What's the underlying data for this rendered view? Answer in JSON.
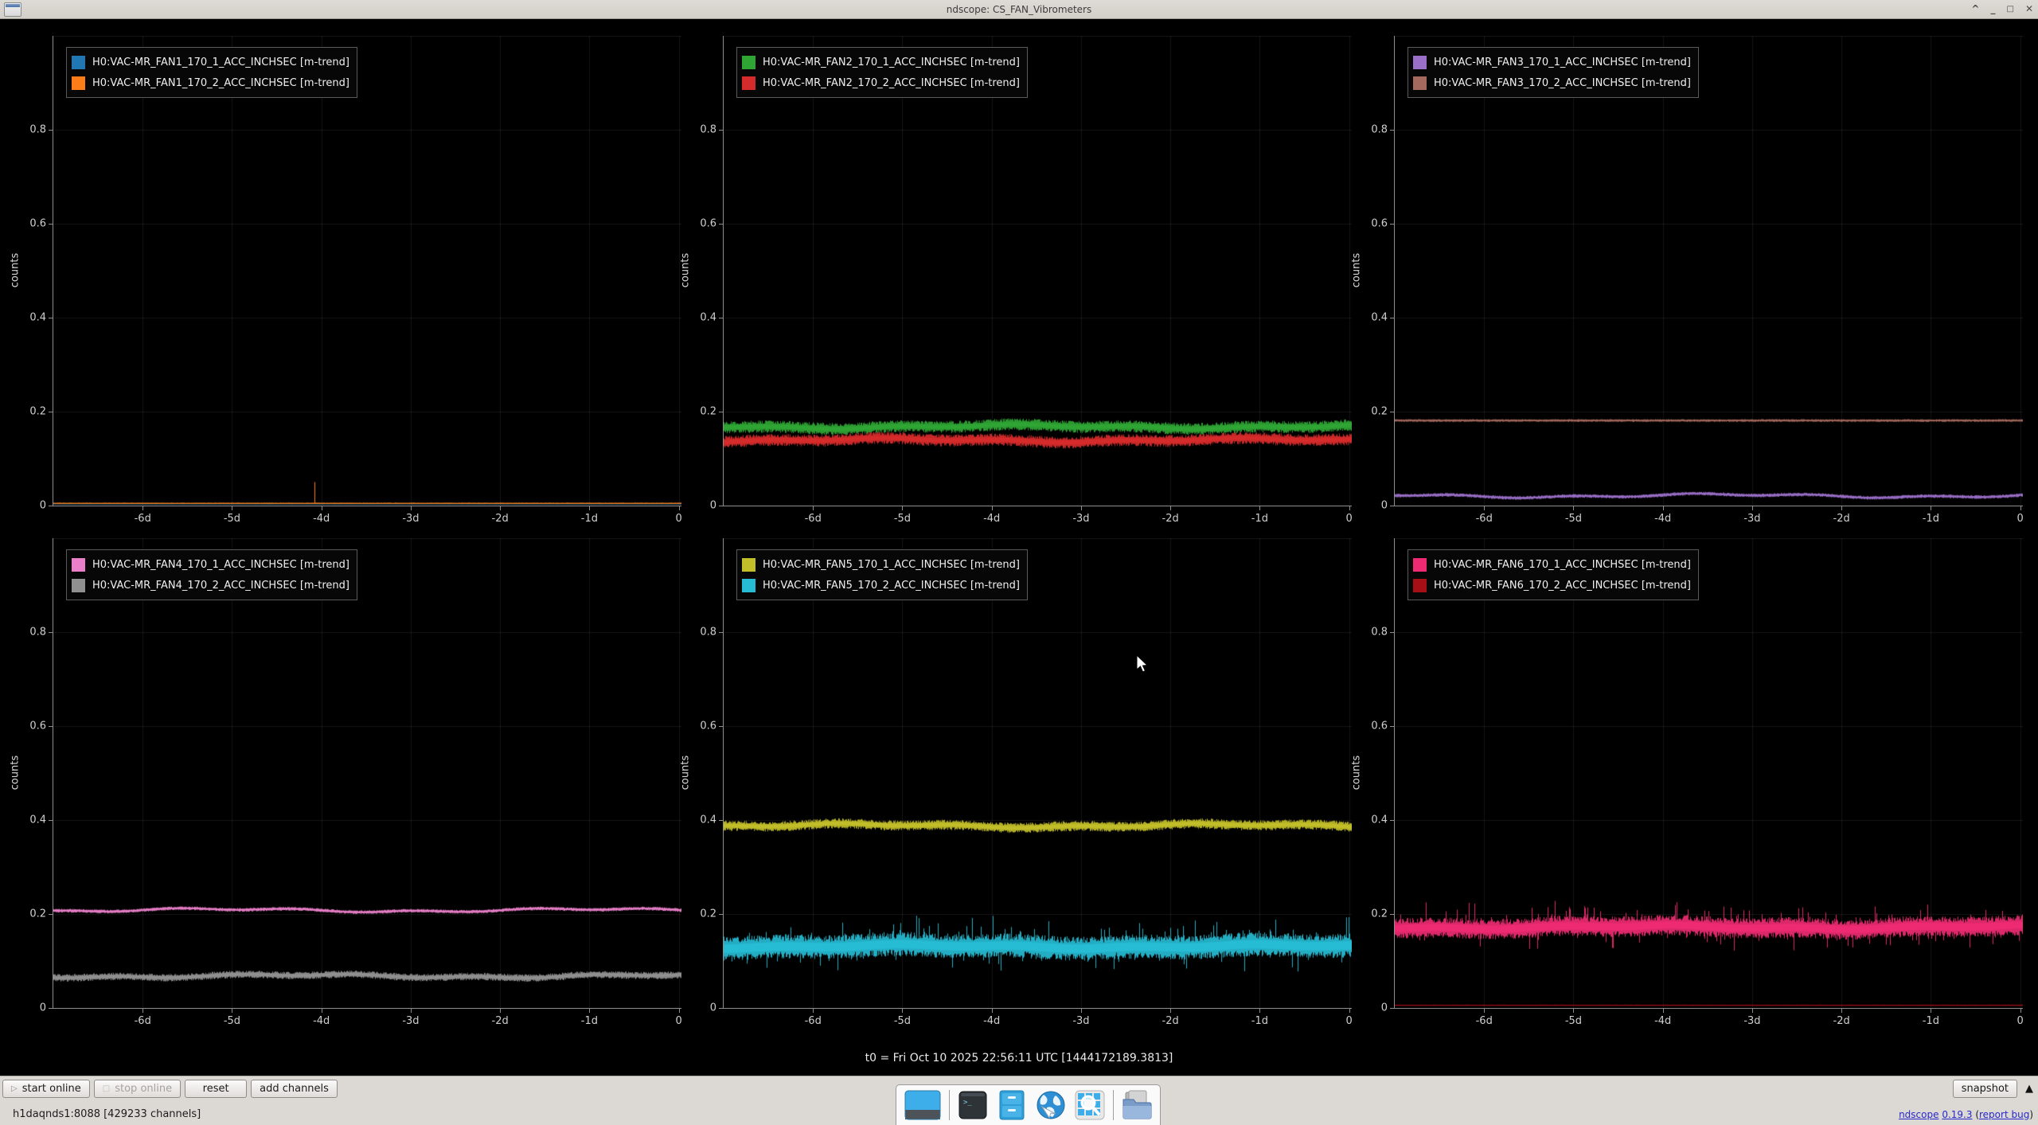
{
  "window": {
    "title": "ndscope: CS_FAN_Vibrometers",
    "controls": [
      "rollup",
      "minimize",
      "maximize",
      "close"
    ]
  },
  "t0_label": "t0 = Fri Oct 10 2025 22:56:11 UTC [1444172189.3813]",
  "toolbar": {
    "start_online": "start online",
    "stop_online": "stop online",
    "reset": "reset",
    "add_channels": "add channels",
    "snapshot": "snapshot"
  },
  "status": {
    "server_info": "h1daqnds1:8088  [429233 channels]",
    "app_name_link": "ndscope",
    "version_link": "0.19.3",
    "open_paren": "(",
    "bug_link": "report bug",
    "close_paren": ")"
  },
  "taskbar": {
    "icons": [
      "show-desktop",
      "terminal",
      "file-cabinet",
      "web-browser",
      "application-finder",
      "file-manager"
    ]
  },
  "chart_data": [
    {
      "type": "line",
      "title": "",
      "ylabel": "counts",
      "xlabel": "",
      "ylim": [
        0,
        1.0
      ],
      "xlim_days": [
        -7,
        0.03
      ],
      "grid": true,
      "legend_position": "top-left",
      "xtick_days": [
        -6,
        -5,
        -4,
        -3,
        -2,
        -1,
        0
      ],
      "xtick_labels": [
        "-6d",
        "-5d",
        "-4d",
        "-3d",
        "-2d",
        "-1d",
        "0"
      ],
      "ytick_values": [
        0,
        0.2,
        0.4,
        0.6,
        0.8
      ],
      "ytick_labels": [
        "0",
        "0.2",
        "0.4",
        "0.6",
        "0.8"
      ],
      "series": [
        {
          "name": "H0:VAC-MR_FAN1_170_1_ACC_INCHSEC [m-trend]",
          "color": "#2077b4",
          "mean": 0.004,
          "amp": 0.001,
          "spiky": false
        },
        {
          "name": "H0:VAC-MR_FAN1_170_2_ACC_INCHSEC [m-trend]",
          "color": "#fb7d17",
          "mean": 0.005,
          "amp": 0.0012,
          "spiky": false,
          "spikes": [
            {
              "t": -4.08,
              "v": 0.05
            }
          ]
        }
      ]
    },
    {
      "type": "line",
      "title": "",
      "ylabel": "counts",
      "xlabel": "",
      "ylim": [
        0,
        1.0
      ],
      "xlim_days": [
        -7,
        0.03
      ],
      "grid": true,
      "legend_position": "top-left",
      "xtick_days": [
        -6,
        -5,
        -4,
        -3,
        -2,
        -1,
        0
      ],
      "xtick_labels": [
        "-6d",
        "-5d",
        "-4d",
        "-3d",
        "-2d",
        "-1d",
        "0"
      ],
      "ytick_values": [
        0,
        0.2,
        0.4,
        0.6,
        0.8
      ],
      "ytick_labels": [
        "0",
        "0.2",
        "0.4",
        "0.6",
        "0.8"
      ],
      "series": [
        {
          "name": "H0:VAC-MR_FAN2_170_1_ACC_INCHSEC [m-trend]",
          "color": "#2fa534",
          "mean": 0.168,
          "amp": 0.013,
          "spiky": false
        },
        {
          "name": "H0:VAC-MR_FAN2_170_2_ACC_INCHSEC [m-trend]",
          "color": "#d62b2b",
          "mean": 0.139,
          "amp": 0.013,
          "spiky": false
        }
      ]
    },
    {
      "type": "line",
      "title": "",
      "ylabel": "counts",
      "xlabel": "",
      "ylim": [
        0,
        1.0
      ],
      "xlim_days": [
        -7,
        0.03
      ],
      "grid": true,
      "legend_position": "top-left",
      "xtick_days": [
        -6,
        -5,
        -4,
        -3,
        -2,
        -1,
        0
      ],
      "xtick_labels": [
        "-6d",
        "-5d",
        "-4d",
        "-3d",
        "-2d",
        "-1d",
        "0"
      ],
      "ytick_values": [
        0,
        0.2,
        0.4,
        0.6,
        0.8
      ],
      "ytick_labels": [
        "0",
        "0.2",
        "0.4",
        "0.6",
        "0.8"
      ],
      "series": [
        {
          "name": "H0:VAC-MR_FAN3_170_1_ACC_INCHSEC [m-trend]",
          "color": "#9a6fc8",
          "mean": 0.021,
          "amp": 0.004,
          "spiky": false
        },
        {
          "name": "H0:VAC-MR_FAN3_170_2_ACC_INCHSEC [m-trend]",
          "color": "#a5695e",
          "mean": 0.181,
          "amp": 0.003,
          "spiky": false
        }
      ]
    },
    {
      "type": "line",
      "title": "",
      "ylabel": "counts",
      "xlabel": "",
      "ylim": [
        0,
        1.0
      ],
      "xlim_days": [
        -7,
        0.03
      ],
      "grid": true,
      "legend_position": "top-left",
      "xtick_days": [
        -6,
        -5,
        -4,
        -3,
        -2,
        -1,
        0
      ],
      "xtick_labels": [
        "-6d",
        "-5d",
        "-4d",
        "-3d",
        "-2d",
        "-1d",
        "0"
      ],
      "ytick_values": [
        0,
        0.2,
        0.4,
        0.6,
        0.8
      ],
      "ytick_labels": [
        "0",
        "0.2",
        "0.4",
        "0.6",
        "0.8"
      ],
      "series": [
        {
          "name": "H0:VAC-MR_FAN4_170_1_ACC_INCHSEC [m-trend]",
          "color": "#e87fc8",
          "mean": 0.208,
          "amp": 0.004,
          "spiky": false
        },
        {
          "name": "H0:VAC-MR_FAN4_170_2_ACC_INCHSEC [m-trend]",
          "color": "#909090",
          "mean": 0.068,
          "amp": 0.008,
          "spiky": false
        }
      ]
    },
    {
      "type": "line",
      "title": "",
      "ylabel": "counts",
      "xlabel": "",
      "ylim": [
        0,
        1.0
      ],
      "xlim_days": [
        -7,
        0.03
      ],
      "grid": true,
      "legend_position": "top-left",
      "xtick_days": [
        -6,
        -5,
        -4,
        -3,
        -2,
        -1,
        0
      ],
      "xtick_labels": [
        "-6d",
        "-5d",
        "-4d",
        "-3d",
        "-2d",
        "-1d",
        "0"
      ],
      "ytick_values": [
        0,
        0.2,
        0.4,
        0.6,
        0.8
      ],
      "ytick_labels": [
        "0",
        "0.2",
        "0.4",
        "0.6",
        "0.8"
      ],
      "series": [
        {
          "name": "H0:VAC-MR_FAN5_170_1_ACC_INCHSEC [m-trend]",
          "color": "#c2be29",
          "mean": 0.388,
          "amp": 0.011,
          "spiky": false
        },
        {
          "name": "H0:VAC-MR_FAN5_170_2_ACC_INCHSEC [m-trend]",
          "color": "#26bcd4",
          "mean": 0.131,
          "amp": 0.026,
          "spiky": true
        }
      ]
    },
    {
      "type": "line",
      "title": "",
      "ylabel": "counts",
      "xlabel": "",
      "ylim": [
        0,
        1.0
      ],
      "xlim_days": [
        -7,
        0.03
      ],
      "grid": true,
      "legend_position": "top-left",
      "xtick_days": [
        -6,
        -5,
        -4,
        -3,
        -2,
        -1,
        0
      ],
      "xtick_labels": [
        "-6d",
        "-5d",
        "-4d",
        "-3d",
        "-2d",
        "-1d",
        "0"
      ],
      "ytick_values": [
        0,
        0.2,
        0.4,
        0.6,
        0.8
      ],
      "ytick_labels": [
        "0",
        "0.2",
        "0.4",
        "0.6",
        "0.8"
      ],
      "series": [
        {
          "name": "H0:VAC-MR_FAN6_170_1_ACC_INCHSEC [m-trend]",
          "color": "#ee2b72",
          "mean": 0.172,
          "amp": 0.022,
          "spiky": true
        },
        {
          "name": "H0:VAC-MR_FAN6_170_2_ACC_INCHSEC [m-trend]",
          "color": "#a50f15",
          "mean": 0.006,
          "amp": 0.0012,
          "spiky": false
        }
      ]
    }
  ]
}
